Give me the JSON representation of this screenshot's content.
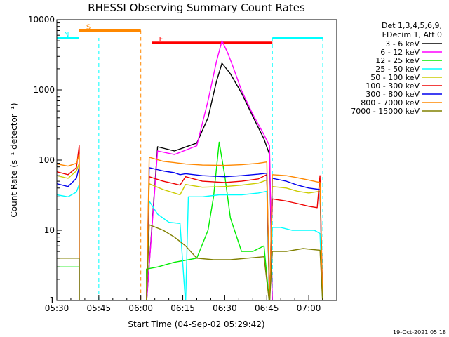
{
  "chart_data": {
    "type": "line",
    "title": "RHESSI Observing Summary Count Rates",
    "xlabel": "Start Time (04-Sep-02 05:29:42)",
    "ylabel": "Count Rate (s⁻¹ detector⁻¹)",
    "y_scale": "log",
    "ylim": [
      1,
      10000
    ],
    "xlim_minutes": [
      0,
      100
    ],
    "x_ticks": [
      {
        "m": 0,
        "label": "05:30"
      },
      {
        "m": 15,
        "label": "05:45"
      },
      {
        "m": 30,
        "label": "06:00"
      },
      {
        "m": 45,
        "label": "06:15"
      },
      {
        "m": 60,
        "label": "06:30"
      },
      {
        "m": 75,
        "label": "06:45"
      },
      {
        "m": 90,
        "label": "07:00"
      }
    ],
    "y_ticks": [
      {
        "v": 1,
        "label": "1"
      },
      {
        "v": 10,
        "label": "10"
      },
      {
        "v": 100,
        "label": "100"
      },
      {
        "v": 1000,
        "label": "1000"
      },
      {
        "v": 10000,
        "label": "10000"
      }
    ],
    "legend_header": [
      "Det 1,3,4,5,6,9,",
      "FDecim 1, Att 0"
    ],
    "legend_placement": "right",
    "series": [
      {
        "name": "3 - 6 keV",
        "color": "#000000",
        "points": [
          [
            0,
            0
          ],
          [
            8,
            0
          ],
          [
            32,
            0
          ],
          [
            36,
            155
          ],
          [
            42,
            135
          ],
          [
            50,
            175
          ],
          [
            54,
            400
          ],
          [
            57,
            1300
          ],
          [
            59,
            2400
          ],
          [
            62,
            1700
          ],
          [
            66,
            900
          ],
          [
            70,
            420
          ],
          [
            74,
            200
          ],
          [
            76,
            120
          ],
          [
            77,
            0
          ],
          [
            100,
            0
          ]
        ]
      },
      {
        "name": "6 - 12 keV",
        "color": "#ff00ff",
        "points": [
          [
            0,
            0
          ],
          [
            8,
            0
          ],
          [
            32,
            0
          ],
          [
            36,
            135
          ],
          [
            42,
            120
          ],
          [
            50,
            160
          ],
          [
            54,
            700
          ],
          [
            57,
            2500
          ],
          [
            59,
            5000
          ],
          [
            61,
            3400
          ],
          [
            63,
            2100
          ],
          [
            66,
            980
          ],
          [
            70,
            450
          ],
          [
            74,
            230
          ],
          [
            76,
            160
          ],
          [
            77,
            0
          ],
          [
            100,
            0
          ]
        ]
      },
      {
        "name": "12 - 25 keV",
        "color": "#00ee00",
        "points": [
          [
            0,
            3
          ],
          [
            8,
            3
          ],
          [
            8,
            0
          ],
          [
            32,
            0
          ],
          [
            32,
            2.8
          ],
          [
            36,
            3
          ],
          [
            42,
            3.5
          ],
          [
            50,
            4
          ],
          [
            54,
            10
          ],
          [
            56,
            30
          ],
          [
            58,
            180
          ],
          [
            60,
            60
          ],
          [
            62,
            15
          ],
          [
            66,
            5
          ],
          [
            70,
            5
          ],
          [
            74,
            6
          ],
          [
            76,
            0
          ],
          [
            100,
            0
          ]
        ]
      },
      {
        "name": "25 - 50 keV",
        "color": "#00ffff",
        "points": [
          [
            0,
            32
          ],
          [
            4,
            30
          ],
          [
            7,
            35
          ],
          [
            8,
            45
          ],
          [
            8,
            0
          ],
          [
            32,
            0
          ],
          [
            33,
            26
          ],
          [
            36,
            17
          ],
          [
            40,
            13
          ],
          [
            44,
            12.5
          ],
          [
            46,
            0
          ],
          [
            47,
            30
          ],
          [
            52,
            30
          ],
          [
            58,
            32
          ],
          [
            66,
            32
          ],
          [
            72,
            34
          ],
          [
            75,
            36
          ],
          [
            76,
            0
          ],
          [
            77,
            11
          ],
          [
            80,
            11
          ],
          [
            84,
            10
          ],
          [
            88,
            10
          ],
          [
            92,
            10
          ],
          [
            94,
            9
          ],
          [
            95,
            0
          ],
          [
            100,
            0
          ]
        ]
      },
      {
        "name": "50 - 100 keV",
        "color": "#cccc00",
        "points": [
          [
            0,
            60
          ],
          [
            4,
            55
          ],
          [
            7,
            70
          ],
          [
            8,
            90
          ],
          [
            8,
            0
          ],
          [
            32,
            0
          ],
          [
            33,
            46
          ],
          [
            38,
            38
          ],
          [
            42,
            34
          ],
          [
            44,
            32
          ],
          [
            46,
            45
          ],
          [
            52,
            41
          ],
          [
            60,
            42
          ],
          [
            66,
            44
          ],
          [
            72,
            47
          ],
          [
            75,
            52
          ],
          [
            76,
            0
          ],
          [
            77,
            42
          ],
          [
            82,
            40
          ],
          [
            86,
            36
          ],
          [
            90,
            34
          ],
          [
            94,
            36
          ],
          [
            95,
            0
          ],
          [
            100,
            0
          ]
        ]
      },
      {
        "name": "100 - 300 keV",
        "color": "#ee0000",
        "points": [
          [
            0,
            68
          ],
          [
            4,
            62
          ],
          [
            7,
            78
          ],
          [
            8,
            160
          ],
          [
            8,
            0
          ],
          [
            32,
            0
          ],
          [
            33,
            58
          ],
          [
            38,
            50
          ],
          [
            42,
            46
          ],
          [
            44,
            44
          ],
          [
            46,
            58
          ],
          [
            52,
            50
          ],
          [
            60,
            48
          ],
          [
            66,
            50
          ],
          [
            72,
            54
          ],
          [
            75,
            62
          ],
          [
            76,
            0
          ],
          [
            77,
            28
          ],
          [
            82,
            26
          ],
          [
            86,
            24
          ],
          [
            90,
            22
          ],
          [
            93,
            21
          ],
          [
            94,
            60
          ],
          [
            95,
            0
          ],
          [
            100,
            0
          ]
        ]
      },
      {
        "name": "300 - 800 keV",
        "color": "#0000ee",
        "points": [
          [
            0,
            46
          ],
          [
            4,
            42
          ],
          [
            7,
            55
          ],
          [
            8,
            80
          ],
          [
            8,
            0
          ],
          [
            32,
            0
          ],
          [
            33,
            78
          ],
          [
            38,
            70
          ],
          [
            42,
            66
          ],
          [
            44,
            62
          ],
          [
            46,
            64
          ],
          [
            52,
            60
          ],
          [
            60,
            58
          ],
          [
            66,
            60
          ],
          [
            72,
            63
          ],
          [
            75,
            65
          ],
          [
            76,
            0
          ],
          [
            77,
            55
          ],
          [
            82,
            50
          ],
          [
            86,
            44
          ],
          [
            90,
            40
          ],
          [
            94,
            38
          ],
          [
            95,
            0
          ],
          [
            100,
            0
          ]
        ]
      },
      {
        "name": "800 - 7000 keV",
        "color": "#ff8800",
        "points": [
          [
            0,
            88
          ],
          [
            4,
            82
          ],
          [
            7,
            90
          ],
          [
            8,
            120
          ],
          [
            8,
            0
          ],
          [
            32,
            0
          ],
          [
            33,
            110
          ],
          [
            38,
            96
          ],
          [
            42,
            92
          ],
          [
            44,
            90
          ],
          [
            46,
            88
          ],
          [
            52,
            85
          ],
          [
            60,
            84
          ],
          [
            66,
            86
          ],
          [
            72,
            90
          ],
          [
            75,
            94
          ],
          [
            76,
            0
          ],
          [
            77,
            62
          ],
          [
            82,
            60
          ],
          [
            86,
            56
          ],
          [
            90,
            52
          ],
          [
            94,
            48
          ],
          [
            95,
            0
          ],
          [
            100,
            0
          ]
        ]
      },
      {
        "name": "7000 - 15000 keV",
        "color": "#808000",
        "points": [
          [
            0,
            4
          ],
          [
            4,
            4
          ],
          [
            8,
            4
          ],
          [
            8,
            0
          ],
          [
            32,
            0
          ],
          [
            33,
            12
          ],
          [
            38,
            10
          ],
          [
            42,
            8
          ],
          [
            46,
            6
          ],
          [
            50,
            4
          ],
          [
            56,
            3.8
          ],
          [
            62,
            3.8
          ],
          [
            68,
            4
          ],
          [
            74,
            4.2
          ],
          [
            76,
            0
          ],
          [
            77,
            5
          ],
          [
            82,
            5
          ],
          [
            88,
            5.5
          ],
          [
            94,
            5.2
          ],
          [
            95,
            0
          ],
          [
            100,
            0
          ]
        ]
      }
    ],
    "flags": [
      {
        "label": "S",
        "color": "#ff8800",
        "y": 7000,
        "segments": [
          [
            8,
            30
          ]
        ],
        "dashed_at": [
          30
        ]
      },
      {
        "label": "N",
        "color": "#00ffff",
        "y": 5500,
        "segments": [
          [
            0,
            8
          ],
          [
            77,
            95
          ]
        ],
        "dashed_at": [
          0,
          15,
          77,
          95
        ]
      },
      {
        "label": "F",
        "color": "#ff0000",
        "y": 4700,
        "segments": [
          [
            34,
            77
          ]
        ],
        "dashed_at": []
      }
    ]
  },
  "timestamp": "19-Oct-2021 05:18"
}
